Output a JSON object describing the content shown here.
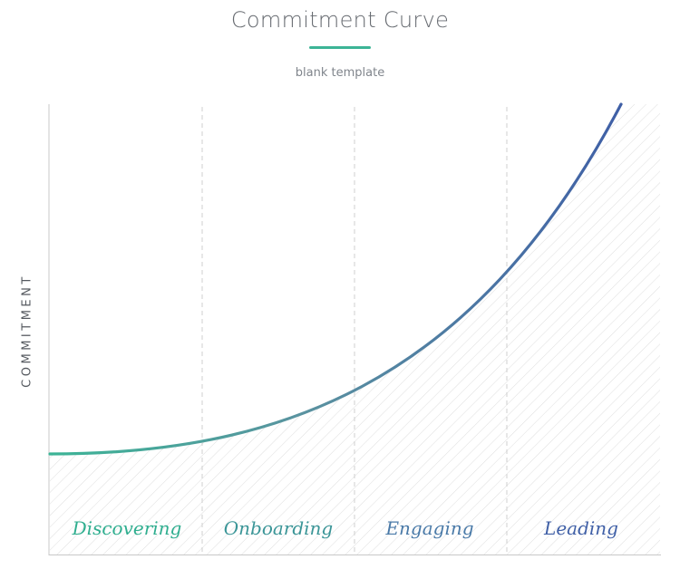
{
  "title": "Commitment Curve",
  "subtitle": "blank template",
  "axis": {
    "ylabel": "COMMITMENT"
  },
  "phases": [
    {
      "label": "Discovering",
      "color": "#2fae8f"
    },
    {
      "label": "Onboarding",
      "color": "#3a9597"
    },
    {
      "label": "Engaging",
      "color": "#4a7aa8"
    },
    {
      "label": "Leading",
      "color": "#3f5fa6"
    }
  ],
  "colors": {
    "curve_start": "#3cb496",
    "curve_end": "#3f5fa6",
    "title_rule": "#3cb496",
    "hatch": "#dcdcdc",
    "divider": "#d0d0d0"
  }
}
